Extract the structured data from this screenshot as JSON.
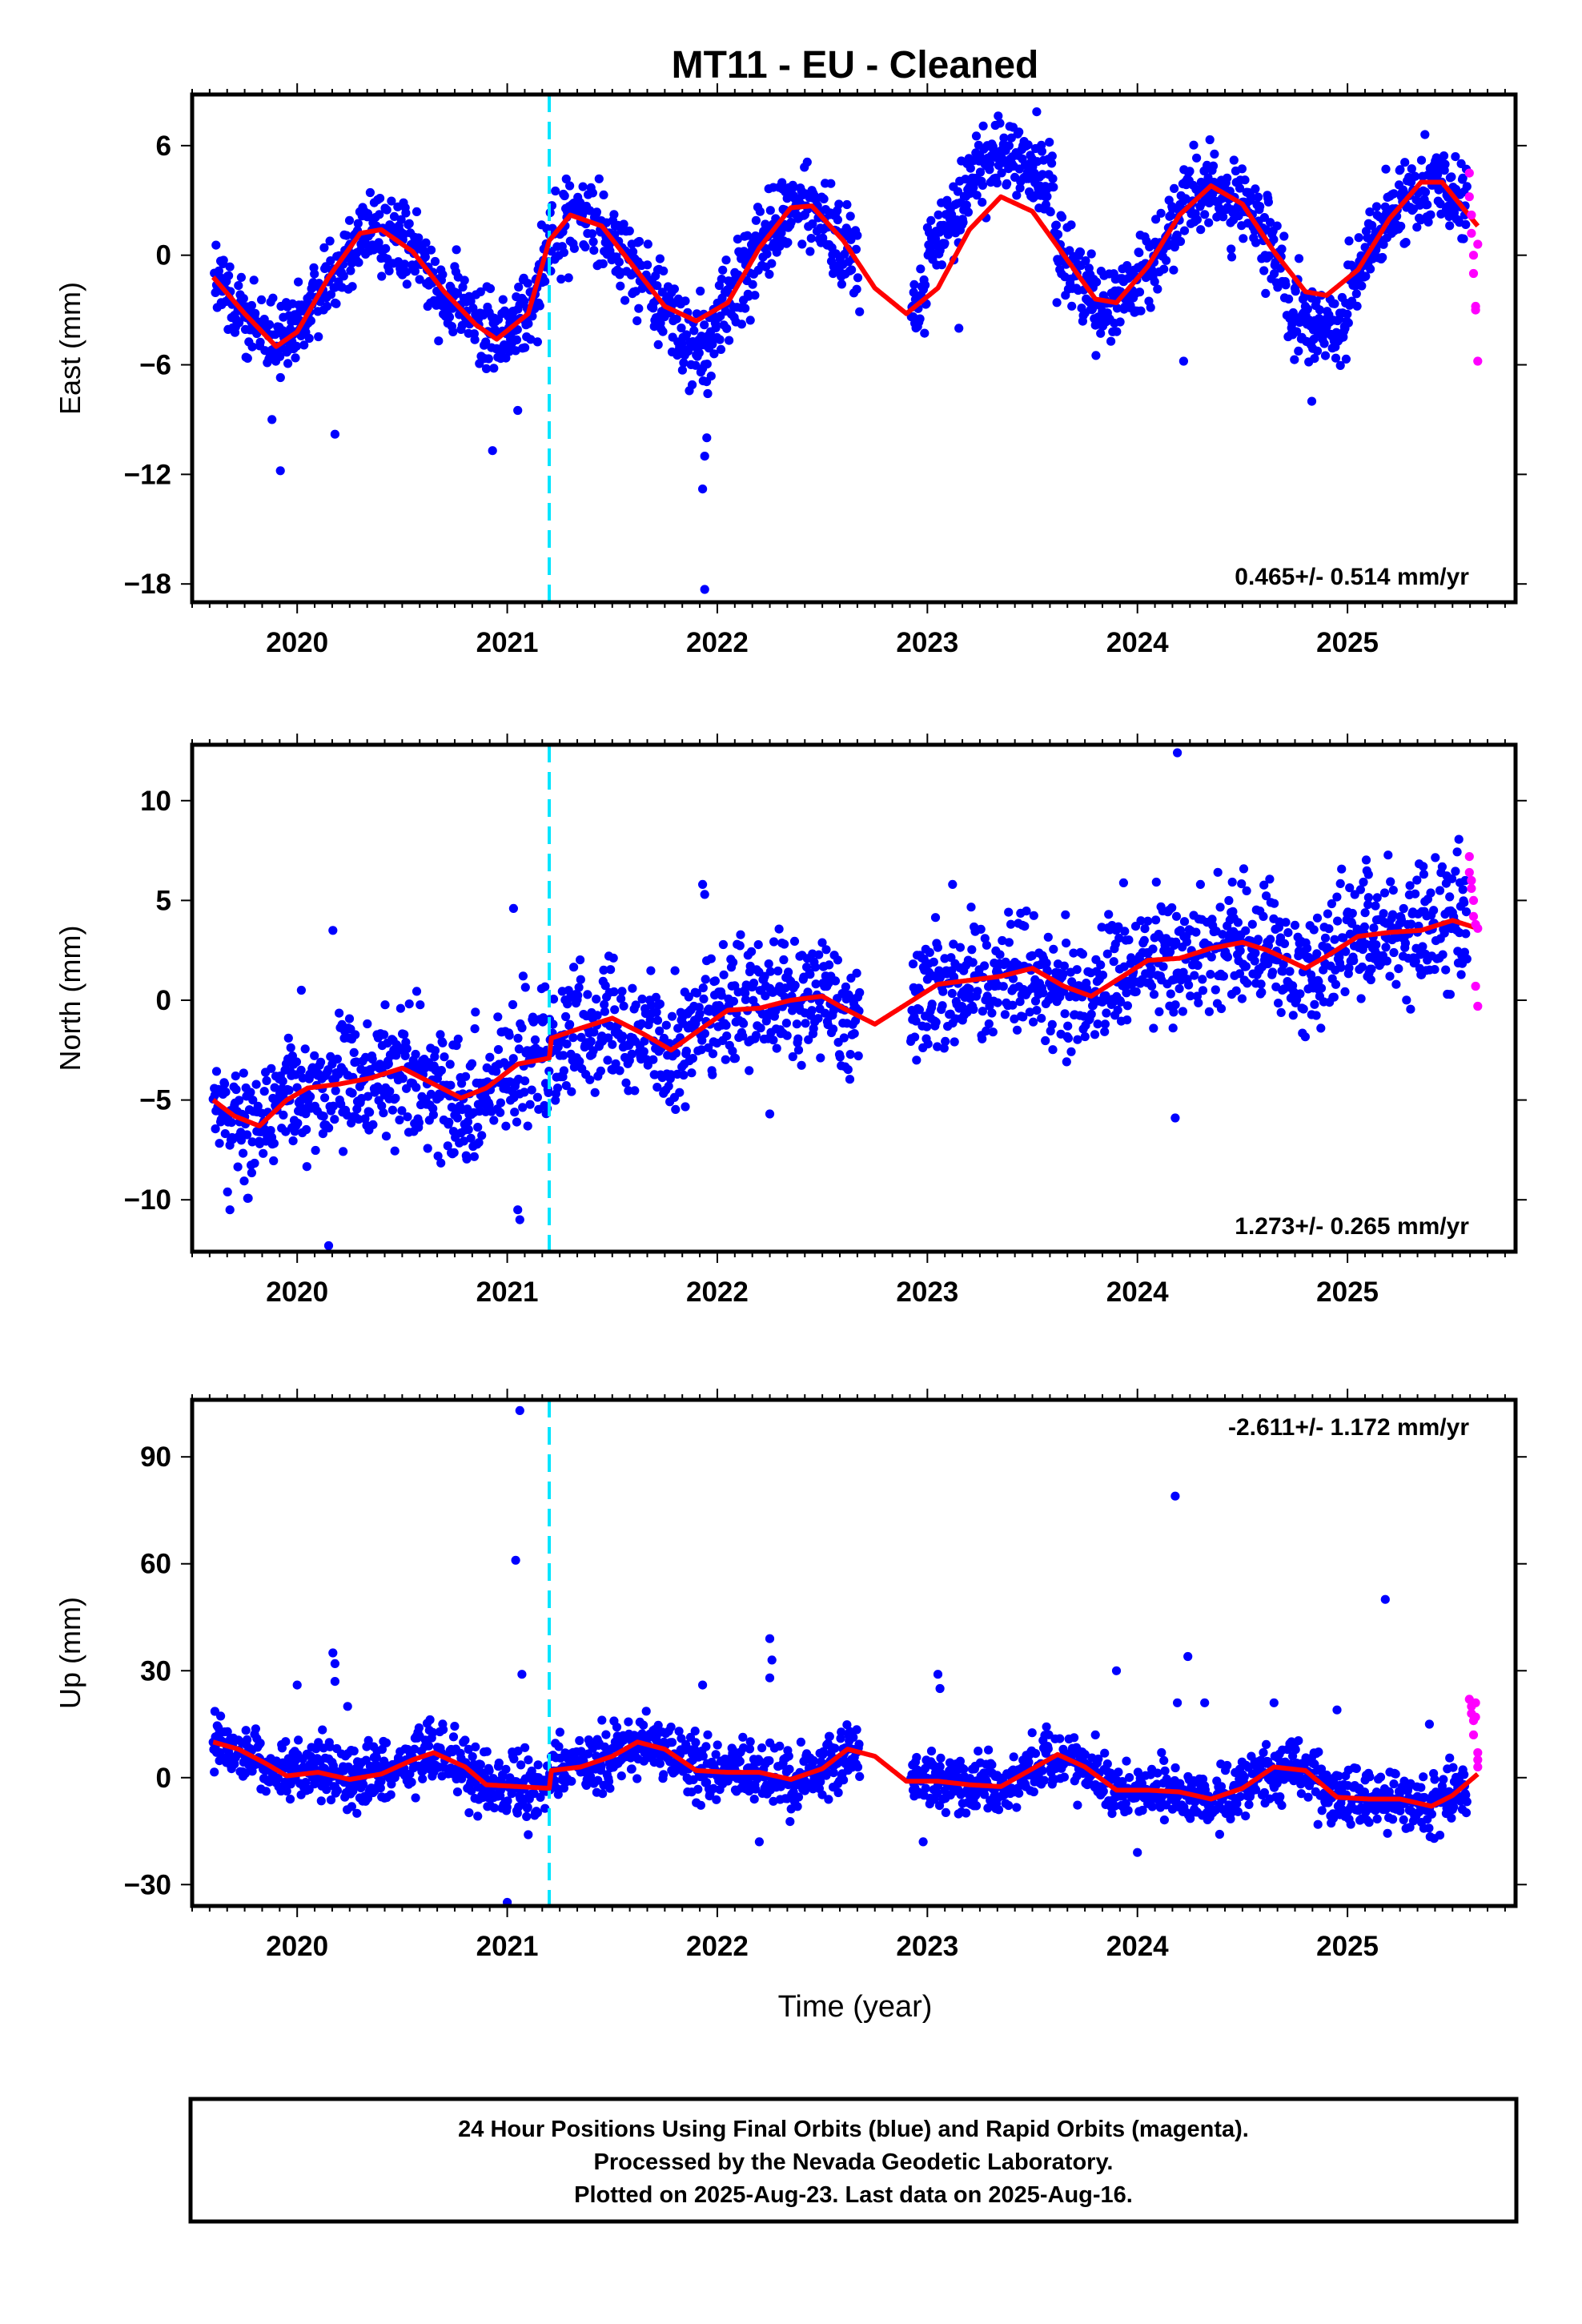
{
  "chart_data": {
    "type": "scatter",
    "title": "MT11  - EU - Cleaned",
    "xlabel": "Time (year)",
    "xlim": [
      2019.5,
      2025.8
    ],
    "x_ticks": [
      "2020",
      "2021",
      "2022",
      "2023",
      "2024",
      "2025"
    ],
    "grid": false,
    "legend": "none",
    "colors": {
      "final": "#0000ff",
      "rapid": "#ff00ff",
      "model": "#ff0000",
      "offset": "#00e5ff"
    },
    "offset_line_x": 2021.2,
    "panels": [
      {
        "name": "east",
        "ylabel": "East (mm)",
        "ylim": [
          -19,
          8.8
        ],
        "y_ticks": [
          "6",
          "0",
          "−6",
          "−12",
          "−18"
        ],
        "y_tick_values": [
          6,
          0,
          -6,
          -12,
          -18
        ],
        "rate_label": "0.465+/- 0.514 mm/yr",
        "model": {
          "x": [
            2019.6,
            2019.75,
            2019.9,
            2020.0,
            2020.15,
            2020.3,
            2020.4,
            2020.55,
            2020.7,
            2020.85,
            2020.95,
            2021.1,
            2021.2,
            2021.3,
            2021.45,
            2021.6,
            2021.75,
            2021.9,
            2022.05,
            2022.2,
            2022.35,
            2022.45,
            2022.6,
            2022.75,
            2022.9,
            2023.05,
            2023.2,
            2023.35,
            2023.5,
            2023.65,
            2023.8,
            2023.9,
            2024.05,
            2024.2,
            2024.35,
            2024.5,
            2024.65,
            2024.8,
            2024.9,
            2025.05,
            2025.2,
            2025.35,
            2025.45,
            2025.62
          ],
          "y": [
            -1.2,
            -3.2,
            -5.0,
            -4.2,
            -1.2,
            1.2,
            1.4,
            0.2,
            -2.0,
            -3.8,
            -4.6,
            -3.2,
            0.8,
            2.2,
            1.6,
            -0.6,
            -2.8,
            -3.6,
            -2.6,
            0.4,
            2.6,
            2.7,
            0.8,
            -1.8,
            -3.2,
            -1.8,
            1.4,
            3.2,
            2.4,
            0.0,
            -2.4,
            -2.6,
            -0.6,
            2.2,
            3.8,
            2.8,
            0.2,
            -2.0,
            -2.2,
            -0.8,
            2.0,
            4.0,
            4.0,
            1.6
          ]
        },
        "seasonal": {
          "amp": 3.3,
          "phase": 2020.05,
          "trend": 0.3,
          "base": -1.8,
          "noise": 1.1
        },
        "outliers": [
          [
            2019.92,
            -11.8
          ],
          [
            2019.88,
            -9.0
          ],
          [
            2020.18,
            -9.8
          ],
          [
            2020.93,
            -10.7
          ],
          [
            2021.05,
            -8.5
          ],
          [
            2021.94,
            -18.3
          ],
          [
            2021.93,
            -12.8
          ],
          [
            2021.94,
            -11.0
          ],
          [
            2021.95,
            -10.0
          ],
          [
            2023.15,
            -4.0
          ],
          [
            2024.22,
            -5.8
          ],
          [
            2024.83,
            -8.0
          ]
        ],
        "rapid": {
          "x": [
            2025.58,
            2025.58,
            2025.59,
            2025.59,
            2025.6,
            2025.6,
            2025.61,
            2025.61,
            2025.62,
            2025.62
          ],
          "y": [
            4.5,
            3.2,
            2.2,
            1.2,
            0.0,
            -1.0,
            -2.8,
            -3.0,
            -5.8,
            0.6
          ]
        }
      },
      {
        "name": "north",
        "ylabel": "North (mm)",
        "ylim": [
          -12.6,
          12.8
        ],
        "y_ticks": [
          "10",
          "5",
          "0",
          "−5",
          "−10"
        ],
        "y_tick_values": [
          10,
          5,
          0,
          -5,
          -10
        ],
        "rate_label": "1.273+/- 0.265 mm/yr",
        "model": {
          "x": [
            2019.6,
            2019.7,
            2019.82,
            2019.95,
            2020.05,
            2020.2,
            2020.35,
            2020.5,
            2020.65,
            2020.78,
            2020.9,
            2021.05,
            2021.2,
            2021.21,
            2021.35,
            2021.5,
            2021.65,
            2021.78,
            2021.9,
            2022.05,
            2022.2,
            2022.35,
            2022.5,
            2022.6,
            2022.75,
            2022.9,
            2023.05,
            2023.2,
            2023.35,
            2023.5,
            2023.65,
            2023.78,
            2023.9,
            2024.05,
            2024.2,
            2024.35,
            2024.5,
            2024.62,
            2024.8,
            2024.9,
            2025.05,
            2025.2,
            2025.35,
            2025.5,
            2025.62
          ],
          "y": [
            -5.0,
            -5.8,
            -6.3,
            -5.0,
            -4.4,
            -4.2,
            -3.9,
            -3.4,
            -4.2,
            -4.9,
            -4.4,
            -3.2,
            -2.9,
            -1.9,
            -1.4,
            -0.9,
            -1.7,
            -2.5,
            -1.6,
            -0.5,
            -0.4,
            0.0,
            0.2,
            -0.4,
            -1.2,
            -0.2,
            0.8,
            1.0,
            1.2,
            1.6,
            0.7,
            0.2,
            1.0,
            2.0,
            2.1,
            2.6,
            2.9,
            2.5,
            1.6,
            2.2,
            3.2,
            3.4,
            3.5,
            4.0,
            3.6
          ]
        },
        "seasonal": {
          "amp": 1.1,
          "phase": 2019.9,
          "trend": 1.27,
          "base": -5.4,
          "noise": 1.5
        },
        "outliers": [
          [
            2019.68,
            -10.5
          ],
          [
            2020.15,
            -12.3
          ],
          [
            2020.17,
            3.5
          ],
          [
            2020.02,
            0.5
          ],
          [
            2021.05,
            -10.5
          ],
          [
            2021.06,
            -11.0
          ],
          [
            2021.03,
            4.6
          ],
          [
            2021.93,
            5.8
          ],
          [
            2021.94,
            5.3
          ],
          [
            2022.25,
            -5.7
          ],
          [
            2023.12,
            5.8
          ],
          [
            2024.19,
            12.4
          ],
          [
            2024.18,
            -5.9
          ],
          [
            2024.3,
            5.8
          ],
          [
            2025.1,
            6.3
          ]
        ],
        "rapid": {
          "x": [
            2025.58,
            2025.58,
            2025.59,
            2025.59,
            2025.6,
            2025.6,
            2025.61,
            2025.61,
            2025.62,
            2025.62
          ],
          "y": [
            7.2,
            6.4,
            6.0,
            5.6,
            5.0,
            4.2,
            3.8,
            0.7,
            -0.3,
            3.6
          ]
        }
      },
      {
        "name": "up",
        "ylabel": "Up (mm)",
        "ylim": [
          -36,
          106
        ],
        "y_ticks": [
          "90",
          "60",
          "30",
          "0",
          "−30"
        ],
        "y_tick_values": [
          90,
          60,
          30,
          0,
          -30
        ],
        "rate_label": "-2.611+/- 1.172 mm/yr",
        "model": {
          "x": [
            2019.6,
            2019.72,
            2019.85,
            2019.95,
            2020.1,
            2020.25,
            2020.4,
            2020.55,
            2020.65,
            2020.8,
            2020.9,
            2021.05,
            2021.2,
            2021.21,
            2021.35,
            2021.5,
            2021.62,
            2021.75,
            2021.9,
            2022.05,
            2022.2,
            2022.35,
            2022.5,
            2022.62,
            2022.75,
            2022.9,
            2023.05,
            2023.2,
            2023.35,
            2023.5,
            2023.62,
            2023.75,
            2023.9,
            2024.05,
            2024.2,
            2024.35,
            2024.5,
            2024.65,
            2024.8,
            2024.95,
            2025.1,
            2025.25,
            2025.4,
            2025.5,
            2025.62
          ],
          "y": [
            10,
            8,
            4,
            0.5,
            1.5,
            -0.5,
            1.0,
            5.0,
            7.0,
            3.0,
            -2.0,
            -2.5,
            -3.0,
            2.0,
            3.0,
            6.0,
            10.0,
            8.0,
            2.0,
            1.5,
            1.5,
            -0.5,
            2.5,
            8.0,
            6.0,
            -1.0,
            -1.0,
            -2.0,
            -2.5,
            2.5,
            6.5,
            3.0,
            -3.5,
            -3.5,
            -4.0,
            -6.0,
            -3.0,
            3.0,
            2.0,
            -5.5,
            -6.0,
            -6.0,
            -8.0,
            -5.0,
            1.0
          ]
        },
        "seasonal": {
          "amp": 4.0,
          "phase": 2020.35,
          "trend": -2.6,
          "base": 9.5,
          "noise": 4.2
        },
        "outliers": [
          [
            2021.06,
            103
          ],
          [
            2021.04,
            61
          ],
          [
            2021.07,
            29
          ],
          [
            2020.17,
            35
          ],
          [
            2020.18,
            32
          ],
          [
            2020.18,
            27
          ],
          [
            2020.0,
            26
          ],
          [
            2020.24,
            20
          ],
          [
            2021.0,
            -35
          ],
          [
            2021.1,
            -16
          ],
          [
            2021.93,
            26
          ],
          [
            2022.25,
            39
          ],
          [
            2022.26,
            33
          ],
          [
            2022.25,
            28
          ],
          [
            2022.2,
            -18
          ],
          [
            2022.98,
            -18
          ],
          [
            2023.05,
            29
          ],
          [
            2023.06,
            25
          ],
          [
            2023.9,
            30
          ],
          [
            2023.8,
            12
          ],
          [
            2024.0,
            -21
          ],
          [
            2024.18,
            79
          ],
          [
            2024.24,
            34
          ],
          [
            2024.19,
            21
          ],
          [
            2024.32,
            21
          ],
          [
            2024.65,
            21
          ],
          [
            2024.95,
            19
          ],
          [
            2025.18,
            50
          ],
          [
            2025.39,
            15
          ]
        ],
        "rapid": {
          "x": [
            2025.58,
            2025.59,
            2025.59,
            2025.6,
            2025.6,
            2025.61,
            2025.61,
            2025.62,
            2025.62,
            2025.62
          ],
          "y": [
            22,
            20,
            18,
            16,
            12,
            21,
            17,
            7,
            5,
            3
          ]
        }
      }
    ]
  },
  "caption": {
    "line1": "24 Hour Positions Using Final Orbits (blue) and Rapid Orbits (magenta).",
    "line2": "Processed by the Nevada Geodetic Laboratory.",
    "line3": "Plotted on 2025-Aug-23. Last data on 2025-Aug-16."
  }
}
